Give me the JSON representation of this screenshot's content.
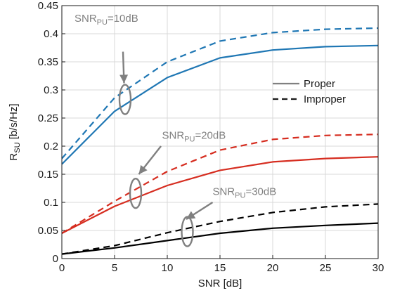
{
  "chart_data": {
    "type": "line",
    "xlabel": "SNR [dB]",
    "ylabel": {
      "base": "R",
      "sub": "SU",
      "rest": " [b/s/Hz]"
    },
    "xlim": [
      0,
      30
    ],
    "ylim": [
      0,
      0.45
    ],
    "xticks": [
      "0",
      "5",
      "10",
      "15",
      "20",
      "25",
      "30"
    ],
    "yticks": [
      "0",
      "0.05",
      "0.1",
      "0.15",
      "0.2",
      "0.25",
      "0.3",
      "0.35",
      "0.4",
      "0.45"
    ],
    "grid": true,
    "x": [
      0,
      5,
      10,
      15,
      20,
      25,
      30
    ],
    "series": [
      {
        "group": "SNR_PU=10dB",
        "style": "proper",
        "color": "#1f77b4",
        "values": [
          0.168,
          0.262,
          0.322,
          0.357,
          0.371,
          0.377,
          0.379
        ]
      },
      {
        "group": "SNR_PU=10dB",
        "style": "improper",
        "color": "#1f77b4",
        "values": [
          0.178,
          0.286,
          0.35,
          0.387,
          0.402,
          0.408,
          0.41
        ]
      },
      {
        "group": "SNR_PU=20dB",
        "style": "proper",
        "color": "#d62d20",
        "values": [
          0.045,
          0.093,
          0.13,
          0.157,
          0.172,
          0.178,
          0.181
        ]
      },
      {
        "group": "SNR_PU=20dB",
        "style": "improper",
        "color": "#d62d20",
        "values": [
          0.045,
          0.102,
          0.155,
          0.193,
          0.212,
          0.219,
          0.221
        ]
      },
      {
        "group": "SNR_PU=30dB",
        "style": "proper",
        "color": "#000000",
        "values": [
          0.008,
          0.019,
          0.032,
          0.045,
          0.054,
          0.059,
          0.063
        ]
      },
      {
        "group": "SNR_PU=30dB",
        "style": "improper",
        "color": "#000000",
        "values": [
          0.008,
          0.023,
          0.046,
          0.066,
          0.082,
          0.092,
          0.097
        ]
      }
    ],
    "legend": {
      "placement": "right",
      "entries": [
        {
          "label": "Proper",
          "dash": "solid",
          "color": "#808080"
        },
        {
          "label": "Improper",
          "dash": "dashed",
          "color": "#1a1a1a"
        }
      ]
    },
    "annotations": [
      {
        "base": "SNR",
        "sub": "PU",
        "rest": "=10dB",
        "text_at": [
          1.2,
          0.421
        ],
        "ellipse_at": [
          6.0,
          0.283
        ],
        "arrow_from": [
          5.8,
          0.368
        ],
        "arrow_to": [
          5.9,
          0.312
        ]
      },
      {
        "base": "SNR",
        "sub": "PU",
        "rest": "=20dB",
        "text_at": [
          9.5,
          0.213
        ],
        "ellipse_at": [
          7.0,
          0.116
        ],
        "arrow_from": [
          9.4,
          0.2
        ],
        "arrow_to": [
          7.3,
          0.15
        ]
      },
      {
        "base": "SNR",
        "sub": "PU",
        "rest": "=30dB",
        "text_at": [
          14.3,
          0.113
        ],
        "ellipse_at": [
          11.9,
          0.048
        ],
        "arrow_from": [
          14.3,
          0.1
        ],
        "arrow_to": [
          11.8,
          0.07
        ]
      }
    ],
    "annotation_color": "#808080"
  }
}
